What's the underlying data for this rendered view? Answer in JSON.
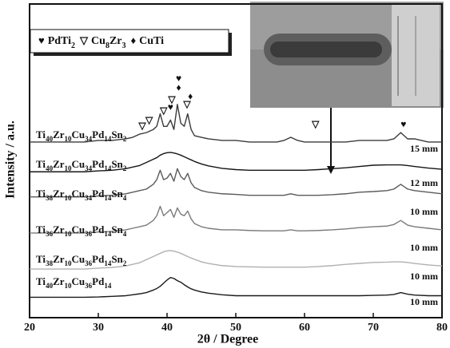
{
  "chart_data": {
    "type": "line",
    "xlabel": "2θ / Degree",
    "ylabel": "Intensity / a.u.",
    "xlim": [
      20,
      80
    ],
    "xticks": [
      20,
      30,
      40,
      50,
      60,
      70,
      80
    ],
    "ylim": [
      0,
      100
    ],
    "x": [
      20,
      22,
      24,
      26,
      28,
      30,
      32,
      34,
      35,
      36,
      37,
      38,
      38.5,
      39,
      39.5,
      40,
      40.5,
      41,
      41.5,
      42,
      42.5,
      43,
      43.5,
      44,
      45,
      46,
      48,
      50,
      52,
      54,
      56,
      57,
      58,
      59,
      60,
      62,
      64,
      66,
      68,
      70,
      72,
      73,
      74,
      75,
      76,
      78,
      80
    ],
    "series": [
      {
        "name": "Ti40Zr10Cu34Pd14Sn2",
        "thickness": "15 mm",
        "color": "#3a3a3a",
        "values": [
          56,
          56,
          56,
          56,
          56,
          56.5,
          56.5,
          57,
          57.5,
          58.5,
          59,
          60,
          61,
          65,
          61,
          61,
          63,
          60,
          68,
          62,
          61,
          65,
          60,
          58,
          57.5,
          57,
          56.5,
          56.5,
          56,
          56,
          56,
          56.5,
          57.5,
          56.5,
          56,
          56,
          56,
          56,
          56.5,
          56.5,
          56.5,
          57,
          59,
          57,
          57,
          56,
          56
        ]
      },
      {
        "name": "Ti40Zr10Cu34Pd14Sn2",
        "thickness": "12 mm",
        "color": "#151515",
        "values": [
          46.5,
          46.5,
          46.5,
          46.5,
          46.5,
          46.8,
          47,
          47.5,
          48,
          48.5,
          49.5,
          50.5,
          51,
          51.8,
          52.3,
          52.6,
          52.7,
          52.5,
          52.2,
          51.8,
          51.3,
          50.8,
          50.3,
          49.8,
          49,
          48.4,
          47.6,
          47.2,
          47,
          47,
          47,
          47,
          47,
          47,
          47,
          47.2,
          47.5,
          47.8,
          48.2,
          48.6,
          48.7,
          48.7,
          48.7,
          48.5,
          48.2,
          47.7,
          47.3
        ]
      },
      {
        "name": "Ti38Zr10Cu34Pd14Sn4",
        "thickness": "10 mm",
        "color": "#5a5a5a",
        "values": [
          38.5,
          38.5,
          38.5,
          38.5,
          38.5,
          38.8,
          39,
          39.5,
          40,
          40.5,
          41,
          42.5,
          44,
          47,
          44,
          44.5,
          46,
          43.5,
          47.5,
          45,
          44,
          46,
          43,
          41.5,
          40.5,
          40,
          39.5,
          39.3,
          39,
          39,
          39,
          39,
          39.5,
          39,
          39,
          39,
          39.2,
          39.5,
          40,
          40.2,
          40.5,
          41,
          42.5,
          41,
          40.5,
          40,
          39.5
        ]
      },
      {
        "name": "Ti36Zr10Cu36Pd14Sn4",
        "thickness": "10 mm",
        "color": "#7a7a7a",
        "values": [
          27,
          27,
          27,
          27,
          27,
          27.3,
          27.5,
          28,
          28.5,
          29,
          29.5,
          31,
          32.5,
          35.5,
          32.5,
          33.5,
          34.5,
          32,
          35,
          33,
          32.5,
          34,
          31.5,
          30,
          29,
          28.5,
          28,
          28,
          27.8,
          27.7,
          27.7,
          27.7,
          28,
          27.7,
          27.7,
          27.8,
          28,
          28.3,
          28.7,
          29,
          29.2,
          29.7,
          31,
          29.5,
          29,
          28.5,
          28
        ]
      },
      {
        "name": "Ti38Zr10Cu36Pd14Sn2",
        "thickness": "10 mm",
        "color": "#b0b0b0",
        "values": [
          15.5,
          15.5,
          15.5,
          15.5,
          15.5,
          15.8,
          16,
          16.5,
          17,
          17.5,
          18.5,
          19.5,
          20,
          20.5,
          21,
          21.3,
          21.4,
          21.2,
          20.9,
          20.5,
          20,
          19.5,
          19,
          18.6,
          17.8,
          17.3,
          16.6,
          16.3,
          16.2,
          16.1,
          16.1,
          16.1,
          16.1,
          16.1,
          16.1,
          16.3,
          16.6,
          17,
          17.3,
          17.6,
          17.7,
          17.8,
          17.8,
          17.6,
          17.3,
          16.8,
          16.5
        ]
      },
      {
        "name": "Ti40Zr10Cu36Pd14",
        "thickness": "10 mm",
        "color": "#1a1a1a",
        "values": [
          6.5,
          6.5,
          6.5,
          6.5,
          6.5,
          6.6,
          6.8,
          7,
          7.3,
          7.6,
          8,
          8.8,
          9.3,
          10,
          11,
          12,
          12.8,
          12.5,
          11.8,
          11.3,
          10.5,
          9.8,
          9.2,
          8.8,
          8.2,
          7.8,
          7.3,
          7,
          7,
          7,
          7,
          7,
          7,
          7,
          7,
          7,
          7,
          7,
          7,
          7.1,
          7.2,
          7.4,
          8,
          7.5,
          7.2,
          7,
          7
        ]
      }
    ],
    "legend": [
      {
        "symbol": "♥",
        "name": "PdTi2"
      },
      {
        "symbol": "▽",
        "name": "Cu8Zr3"
      },
      {
        "symbol": "♦",
        "name": "CuTi"
      }
    ],
    "peak_markers": [
      {
        "symbol": "▽",
        "x": 36.4,
        "y": 60.9
      },
      {
        "symbol": "▽",
        "x": 37.4,
        "y": 62.7
      },
      {
        "symbol": "▽",
        "x": 39.5,
        "y": 65.7
      },
      {
        "symbol": "♥",
        "x": 40.5,
        "y": 66.8
      },
      {
        "symbol": "▽",
        "x": 40.7,
        "y": 69.3
      },
      {
        "symbol": "♦",
        "x": 41.7,
        "y": 73.1
      },
      {
        "symbol": "♥",
        "x": 41.7,
        "y": 76
      },
      {
        "symbol": "▽",
        "x": 42.9,
        "y": 67.8
      },
      {
        "symbol": "♦",
        "x": 43.4,
        "y": 70.3
      },
      {
        "symbol": "▽",
        "x": 61.6,
        "y": 61.4
      },
      {
        "symbol": "♥",
        "x": 74.4,
        "y": 61.4
      }
    ]
  }
}
